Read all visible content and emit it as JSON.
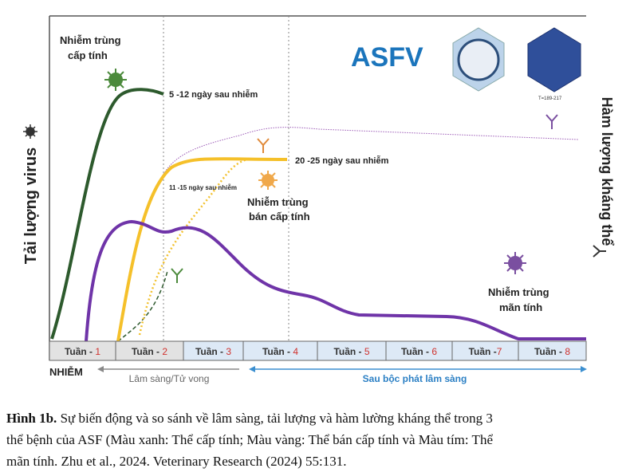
{
  "figure": {
    "acute": {
      "line1": "Nhiễm trùng",
      "line2": "cấp tính",
      "time": "5 -12 ngày sau nhiễm"
    },
    "subacute": {
      "line1": "Nhiễm trùng",
      "line2": "bán cấp tính",
      "time": "20 -25 ngày sau nhiễm",
      "time2": "11 -15 ngày sau nhiễm"
    },
    "chronic": {
      "line1": "Nhiễm trùng",
      "line2": "mãn tính"
    },
    "virus_name": "ASFV",
    "virus_t": "T=189-217",
    "left_axis": "Tải lượng virus",
    "right_axis": "Hàm lượng kháng thể",
    "weeks": [
      {
        "prefix": "Tuần - ",
        "num": "1"
      },
      {
        "prefix": "Tuần - ",
        "num": "2"
      },
      {
        "prefix": "Tuần - ",
        "num": "3"
      },
      {
        "prefix": "Tuần - ",
        "num": "4"
      },
      {
        "prefix": "Tuần - ",
        "num": "5"
      },
      {
        "prefix": "Tuần - ",
        "num": "6"
      },
      {
        "prefix": "Tuần -",
        "num": "7"
      },
      {
        "prefix": "Tuần - ",
        "num": "8"
      }
    ],
    "infection": "NHIỄM",
    "phase1": "Lâm sàng/Tử vong",
    "phase2": "Sau bộc phát lâm sàng"
  },
  "caption": {
    "label": "Hình 1b.",
    "lines": [
      " Sự biến động và so sánh về lâm sàng, tải lượng và hàm lường kháng thể trong 3",
      "thể bệnh của ASF (Màu xanh: Thể cấp tính; Màu vàng: Thể bán cấp tính và Màu tím: Thể",
      "mãn tính.  Zhu et al., 2024. Veterinary Research (2024) 55:131."
    ]
  }
}
